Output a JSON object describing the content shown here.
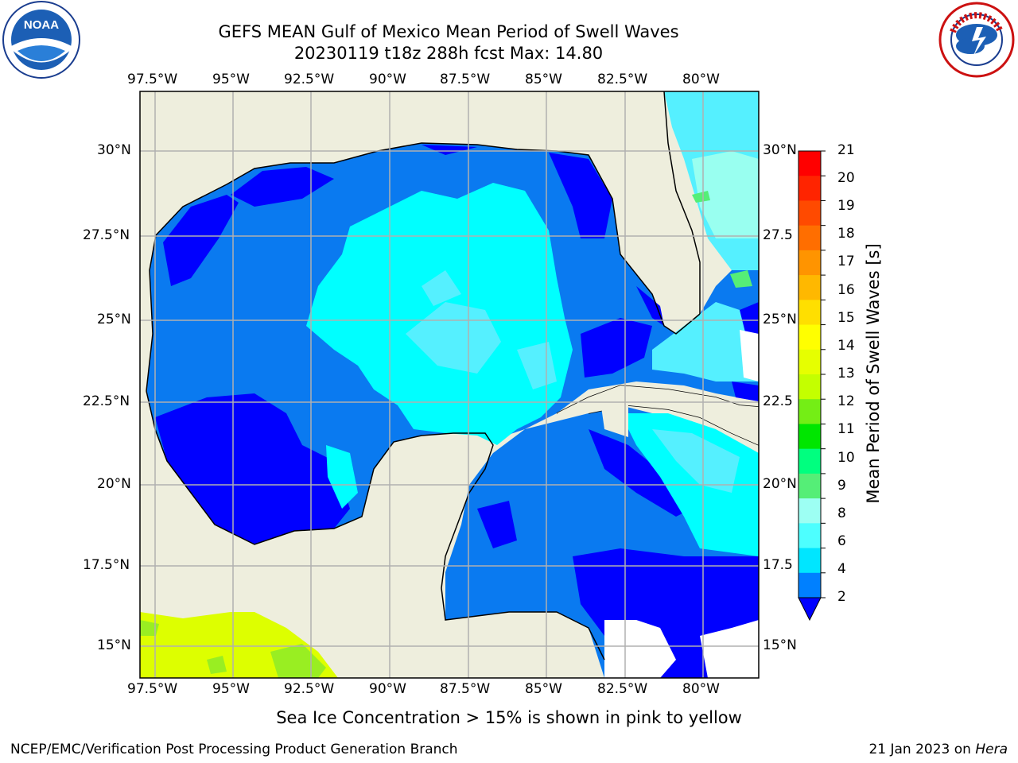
{
  "title_line1": "GEFS MEAN Gulf of Mexico Mean Period of Swell Waves",
  "title_line2": "20230119 t18z 288h fcst   Max: 14.80",
  "lon_ticks": [
    "97.5°W",
    "95°W",
    "92.5°W",
    "90°W",
    "87.5°W",
    "85°W",
    "82.5°W",
    "80°W"
  ],
  "lat_ticks_left": [
    "30°N",
    "27.5°N",
    "25°N",
    "22.5°N",
    "20°N",
    "17.5°N",
    "15°N"
  ],
  "lat_ticks_right": [
    "30°N",
    "27.5",
    "25°N",
    "22.5",
    "20°N",
    "17.5",
    "15°N"
  ],
  "colorbar": {
    "label": "Mean Period of Swell Waves [s]",
    "ticks": [
      "21",
      "20",
      "19",
      "18",
      "17",
      "16",
      "15",
      "14",
      "13",
      "12",
      "11",
      "10",
      "9",
      "8",
      "6",
      "4",
      "2"
    ],
    "colors": [
      "#ff0000",
      "#ff2400",
      "#ff4a00",
      "#ff6e00",
      "#ff9400",
      "#ffb800",
      "#ffdf00",
      "#ffff00",
      "#e6ff00",
      "#c4ff00",
      "#74ee15",
      "#00e600",
      "#00ff7f",
      "#55ee77",
      "#9dfff3",
      "#4dffff",
      "#00e6ff",
      "#0080ff",
      "#0000ff"
    ]
  },
  "map_colors": {
    "land": "#eeeedd",
    "deep_blue": "#0000ff",
    "mid_blue": "#0a7af0",
    "cyan": "#00ffff",
    "light_cyan": "#55f0ff",
    "pale_cyan": "#99fff0",
    "green": "#55ee77",
    "yellow": "#ddff00",
    "lime": "#99ee22"
  },
  "note": "Sea Ice Concentration > 15% is shown in pink to yellow",
  "footer_left": "NCEP/EMC/Verification Post Processing Product Generation Branch",
  "footer_right_prefix": "21 Jan 2023 on ",
  "footer_right_host": "Hera",
  "logo_noaa": "NOAA",
  "logo_nws": "NATIONAL WEATHER SERVICE"
}
